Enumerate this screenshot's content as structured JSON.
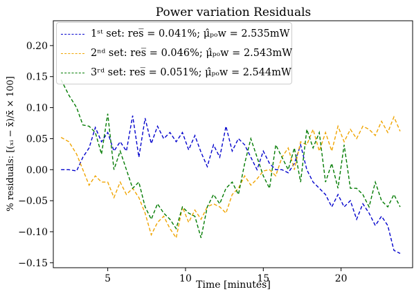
{
  "chart_data": {
    "type": "line",
    "title": "Power variation Residuals",
    "xlabel": "Time [minutes]",
    "ylabel": "% residuals: [(ₓᵢ − x̄)/x̄ × 100]",
    "xlim": [
      1.5,
      24.6
    ],
    "ylim": [
      -0.158,
      0.24
    ],
    "xticks": [
      5,
      10,
      15,
      20
    ],
    "xtick_labels": [
      "5",
      "10",
      "15",
      "20"
    ],
    "yticks": [
      -0.15,
      -0.1,
      -0.05,
      0.0,
      0.05,
      0.1,
      0.15,
      0.2
    ],
    "ytick_labels": [
      "−0.15",
      "−0.10",
      "−0.05",
      "0.00",
      "0.05",
      "0.10",
      "0.15",
      "0.20"
    ],
    "grid": false,
    "legend_position": "top-left",
    "series": [
      {
        "name": "1st set: res = 0.041%; μ_pow = 2.535mW",
        "legend_label": "1ˢᵗ set: res̅ = 0.041%; μ̂ₚₒw = 2.535mW",
        "color": "#0000cc",
        "x": [
          2.0,
          2.5,
          3.0,
          3.4,
          3.8,
          4.2,
          4.6,
          5.0,
          5.4,
          5.8,
          6.2,
          6.6,
          7.0,
          7.4,
          7.8,
          8.2,
          8.6,
          9.0,
          9.4,
          9.8,
          10.2,
          10.6,
          11.0,
          11.4,
          11.8,
          12.2,
          12.6,
          13.0,
          13.4,
          13.8,
          14.2,
          14.6,
          15.0,
          15.4,
          15.8,
          16.2,
          16.6,
          17.0,
          17.4,
          17.8,
          18.2,
          18.6,
          19.0,
          19.4,
          19.8,
          20.2,
          20.6,
          21.0,
          21.4,
          21.8,
          22.2,
          22.6,
          23.0,
          23.4,
          23.8
        ],
        "values": [
          0.0,
          0.0,
          -0.002,
          0.02,
          0.035,
          0.068,
          0.045,
          0.06,
          0.03,
          0.045,
          0.03,
          0.087,
          0.02,
          0.083,
          0.042,
          0.07,
          0.05,
          0.06,
          0.045,
          0.06,
          0.032,
          0.055,
          0.028,
          0.005,
          0.04,
          0.02,
          0.07,
          0.03,
          0.05,
          0.04,
          0.02,
          0.0,
          0.03,
          0.01,
          0.0,
          0.0,
          -0.005,
          0.01,
          0.04,
          0.0,
          -0.02,
          -0.03,
          -0.04,
          -0.06,
          -0.04,
          -0.06,
          -0.05,
          -0.08,
          -0.055,
          -0.07,
          -0.09,
          -0.075,
          -0.09,
          -0.13,
          -0.135
        ]
      },
      {
        "name": "2nd set: res = 0.046%; μ_pow = 2.543mW",
        "legend_label": "2ⁿᵈ set: res̅ = 0.046%; μ̂ₚₒw = 2.543mW",
        "color": "#f0a400",
        "x": [
          2.0,
          2.5,
          3.0,
          3.4,
          3.8,
          4.2,
          4.6,
          5.0,
          5.4,
          5.8,
          6.2,
          6.6,
          7.0,
          7.4,
          7.8,
          8.2,
          8.6,
          9.0,
          9.4,
          9.8,
          10.2,
          10.6,
          11.0,
          11.4,
          11.8,
          12.2,
          12.6,
          13.0,
          13.4,
          13.8,
          14.2,
          14.6,
          15.0,
          15.4,
          15.8,
          16.2,
          16.6,
          17.0,
          17.4,
          17.8,
          18.2,
          18.6,
          19.0,
          19.4,
          19.8,
          20.2,
          20.6,
          21.0,
          21.4,
          21.8,
          22.2,
          22.6,
          23.0,
          23.4,
          23.8
        ],
        "values": [
          0.052,
          0.045,
          0.025,
          0.0,
          -0.025,
          -0.01,
          -0.02,
          -0.02,
          -0.045,
          -0.02,
          -0.04,
          -0.03,
          -0.045,
          -0.07,
          -0.105,
          -0.085,
          -0.075,
          -0.095,
          -0.11,
          -0.06,
          -0.085,
          -0.065,
          -0.08,
          -0.06,
          -0.055,
          -0.06,
          -0.07,
          -0.04,
          -0.03,
          -0.01,
          -0.025,
          -0.015,
          -0.002,
          0.0,
          -0.01,
          0.02,
          0.035,
          0.0,
          0.045,
          0.04,
          0.065,
          0.03,
          0.06,
          0.03,
          0.07,
          0.045,
          0.065,
          0.05,
          0.07,
          0.065,
          0.055,
          0.078,
          0.06,
          0.085,
          0.062
        ]
      },
      {
        "name": "3rd set: res = 0.051%; μ_pow = 2.544mW",
        "legend_label": "3ʳᵈ set: res̅ = 0.051%; μ̂ₚₒw = 2.544mW",
        "color": "#007a00",
        "x": [
          2.0,
          2.5,
          3.0,
          3.4,
          3.8,
          4.2,
          4.6,
          5.0,
          5.4,
          5.8,
          6.2,
          6.6,
          7.0,
          7.4,
          7.8,
          8.2,
          8.6,
          9.0,
          9.4,
          9.8,
          10.2,
          10.6,
          11.0,
          11.4,
          11.8,
          12.2,
          12.6,
          13.0,
          13.4,
          13.8,
          14.2,
          14.6,
          15.0,
          15.4,
          15.8,
          16.2,
          16.6,
          17.0,
          17.4,
          17.8,
          18.2,
          18.6,
          19.0,
          19.4,
          19.8,
          20.2,
          20.6,
          21.0,
          21.4,
          21.8,
          22.2,
          22.6,
          23.0,
          23.4,
          23.8
        ],
        "values": [
          0.145,
          0.12,
          0.1,
          0.072,
          0.07,
          0.06,
          0.025,
          0.09,
          0.0,
          0.03,
          0.0,
          -0.03,
          -0.02,
          -0.06,
          -0.08,
          -0.055,
          -0.07,
          -0.08,
          -0.095,
          -0.06,
          -0.07,
          -0.075,
          -0.11,
          -0.06,
          -0.04,
          -0.055,
          -0.03,
          -0.02,
          -0.04,
          0.01,
          0.05,
          0.02,
          -0.01,
          -0.03,
          0.04,
          0.02,
          0.0,
          0.035,
          -0.02,
          0.065,
          0.035,
          0.06,
          -0.02,
          0.01,
          -0.03,
          0.04,
          -0.03,
          -0.03,
          -0.04,
          -0.06,
          -0.02,
          -0.05,
          -0.06,
          -0.04,
          -0.06
        ]
      }
    ]
  }
}
